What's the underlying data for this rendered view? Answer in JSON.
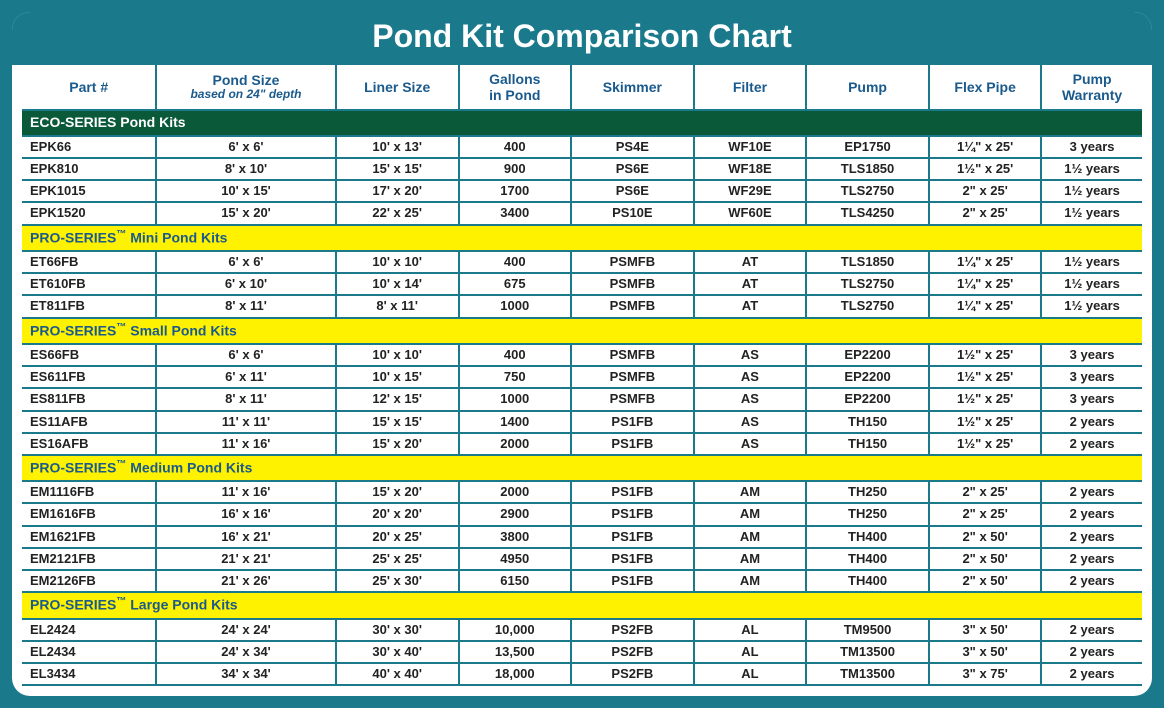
{
  "title": "Pond Kit Comparison Chart",
  "columns": [
    {
      "label": "Part #"
    },
    {
      "label": "Pond Size",
      "sublabel": "based on 24\" depth"
    },
    {
      "label": "Liner Size"
    },
    {
      "label": "Gallons\nin Pond"
    },
    {
      "label": "Skimmer"
    },
    {
      "label": "Filter"
    },
    {
      "label": "Pump"
    },
    {
      "label": "Flex Pipe"
    },
    {
      "label": "Pump\nWarranty"
    }
  ],
  "sections": [
    {
      "name": "ECO-SERIES Pond Kits",
      "style": "eco",
      "rows": [
        [
          "EPK66",
          "6' x 6'",
          "10' x 13'",
          "400",
          "PS4E",
          "WF10E",
          "EP1750",
          "1¼\" x 25'",
          "3 years"
        ],
        [
          "EPK810",
          "8' x 10'",
          "15' x 15'",
          "900",
          "PS6E",
          "WF18E",
          "TLS1850",
          "1½\" x 25'",
          "1½ years"
        ],
        [
          "EPK1015",
          "10' x 15'",
          "17' x 20'",
          "1700",
          "PS6E",
          "WF29E",
          "TLS2750",
          "2\" x 25'",
          "1½ years"
        ],
        [
          "EPK1520",
          "15' x 20'",
          "22' x 25'",
          "3400",
          "PS10E",
          "WF60E",
          "TLS4250",
          "2\" x 25'",
          "1½ years"
        ]
      ]
    },
    {
      "name": "PRO-SERIES™ Mini Pond Kits",
      "style": "pro",
      "rows": [
        [
          "ET66FB",
          "6' x 6'",
          "10' x 10'",
          "400",
          "PSMFB",
          "AT",
          "TLS1850",
          "1¼\" x 25'",
          "1½ years"
        ],
        [
          "ET610FB",
          "6' x 10'",
          "10' x 14'",
          "675",
          "PSMFB",
          "AT",
          "TLS2750",
          "1¼\" x 25'",
          "1½ years"
        ],
        [
          "ET811FB",
          "8' x 11'",
          "8' x 11'",
          "1000",
          "PSMFB",
          "AT",
          "TLS2750",
          "1¼\" x 25'",
          "1½ years"
        ]
      ]
    },
    {
      "name": "PRO-SERIES™ Small Pond Kits",
      "style": "pro",
      "rows": [
        [
          "ES66FB",
          "6' x 6'",
          "10' x 10'",
          "400",
          "PSMFB",
          "AS",
          "EP2200",
          "1½\" x 25'",
          "3 years"
        ],
        [
          "ES611FB",
          "6' x 11'",
          "10' x 15'",
          "750",
          "PSMFB",
          "AS",
          "EP2200",
          "1½\" x 25'",
          "3 years"
        ],
        [
          "ES811FB",
          "8' x 11'",
          "12' x 15'",
          "1000",
          "PSMFB",
          "AS",
          "EP2200",
          "1½\" x 25'",
          "3 years"
        ],
        [
          "ES11AFB",
          "11' x 11'",
          "15' x 15'",
          "1400",
          "PS1FB",
          "AS",
          "TH150",
          "1½\" x 25'",
          "2 years"
        ],
        [
          "ES16AFB",
          "11' x 16'",
          "15' x 20'",
          "2000",
          "PS1FB",
          "AS",
          "TH150",
          "1½\" x 25'",
          "2 years"
        ]
      ]
    },
    {
      "name": "PRO-SERIES™ Medium Pond Kits",
      "style": "pro",
      "rows": [
        [
          "EM1116FB",
          "11' x 16'",
          "15' x 20'",
          "2000",
          "PS1FB",
          "AM",
          "TH250",
          "2\" x 25'",
          "2 years"
        ],
        [
          "EM1616FB",
          "16' x 16'",
          "20' x 20'",
          "2900",
          "PS1FB",
          "AM",
          "TH250",
          "2\" x 25'",
          "2 years"
        ],
        [
          "EM1621FB",
          "16' x 21'",
          "20' x 25'",
          "3800",
          "PS1FB",
          "AM",
          "TH400",
          "2\" x 50'",
          "2 years"
        ],
        [
          "EM2121FB",
          "21' x 21'",
          "25' x 25'",
          "4950",
          "PS1FB",
          "AM",
          "TH400",
          "2\" x 50'",
          "2 years"
        ],
        [
          "EM2126FB",
          "21' x 26'",
          "25' x 30'",
          "6150",
          "PS1FB",
          "AM",
          "TH400",
          "2\" x 50'",
          "2 years"
        ]
      ]
    },
    {
      "name": "PRO-SERIES™ Large Pond Kits",
      "style": "pro",
      "rows": [
        [
          "EL2424",
          "24' x 24'",
          "30' x 30'",
          "10,000",
          "PS2FB",
          "AL",
          "TM9500",
          "3\" x 50'",
          "2 years"
        ],
        [
          "EL2434",
          "24' x 34'",
          "30' x 40'",
          "13,500",
          "PS2FB",
          "AL",
          "TM13500",
          "3\" x 50'",
          "2 years"
        ],
        [
          "EL3434",
          "34' x 34'",
          "40' x 40'",
          "18,000",
          "PS2FB",
          "AL",
          "TM13500",
          "3\" x 75'",
          "2 years"
        ]
      ]
    }
  ],
  "styling": {
    "page_bg": "#1a7a8c",
    "section_eco_bg": "#0a5a3a",
    "section_pro_bg": "#fff200",
    "header_text_color": "#1a5a8c",
    "border_color": "#1a7a8c",
    "title_fontsize": 32,
    "cell_fontsize": 13
  }
}
